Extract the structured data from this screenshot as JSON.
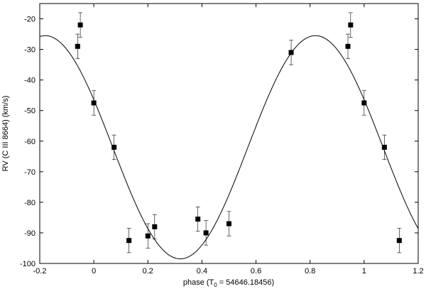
{
  "chart_data": {
    "type": "scatter",
    "xlabel": "phase (T",
    "xlabel_sub": "0",
    "xlabel_rest": " = 54646.18456)",
    "ylabel": "RV (C III 8664) (km/s)",
    "xlim": [
      -0.2,
      1.2
    ],
    "ylim": [
      -100,
      -15
    ],
    "x_ticks": [
      -0.2,
      0,
      0.2,
      0.4,
      0.6,
      0.8,
      1,
      1.2
    ],
    "x_tick_labels": [
      "-0.2",
      "0",
      "0.2",
      "0.4",
      "0.6",
      "0.8",
      "1",
      "1.2"
    ],
    "y_ticks": [
      -100,
      -90,
      -80,
      -70,
      -60,
      -50,
      -40,
      -30,
      -20
    ],
    "y_tick_labels": [
      "-100",
      "-90",
      "-80",
      "-70",
      "-60",
      "-50",
      "-40",
      "-30",
      "-20"
    ],
    "grid": false,
    "series": [
      {
        "kind": "points-with-errorbars",
        "color": "#000000",
        "x": [
          -0.06,
          -0.05,
          0.0,
          0.075,
          0.13,
          0.2,
          0.225,
          0.385,
          0.415,
          0.5,
          0.73,
          0.94,
          0.95,
          1.0,
          1.075,
          1.13
        ],
        "y": [
          -29,
          -22,
          -47.5,
          -62,
          -92.5,
          -91,
          -88,
          -85.5,
          -90,
          -87,
          -31,
          -29,
          -22,
          -47.5,
          -62,
          -92.5
        ],
        "err": [
          4,
          4,
          4,
          4,
          4,
          4,
          4,
          4,
          4,
          4,
          4,
          4,
          4,
          4,
          4,
          4
        ]
      },
      {
        "kind": "model-curve",
        "color": "#000000",
        "gamma": -62,
        "amplitude": 36.5,
        "max_phase": 0.82,
        "period": 1.0
      }
    ]
  }
}
